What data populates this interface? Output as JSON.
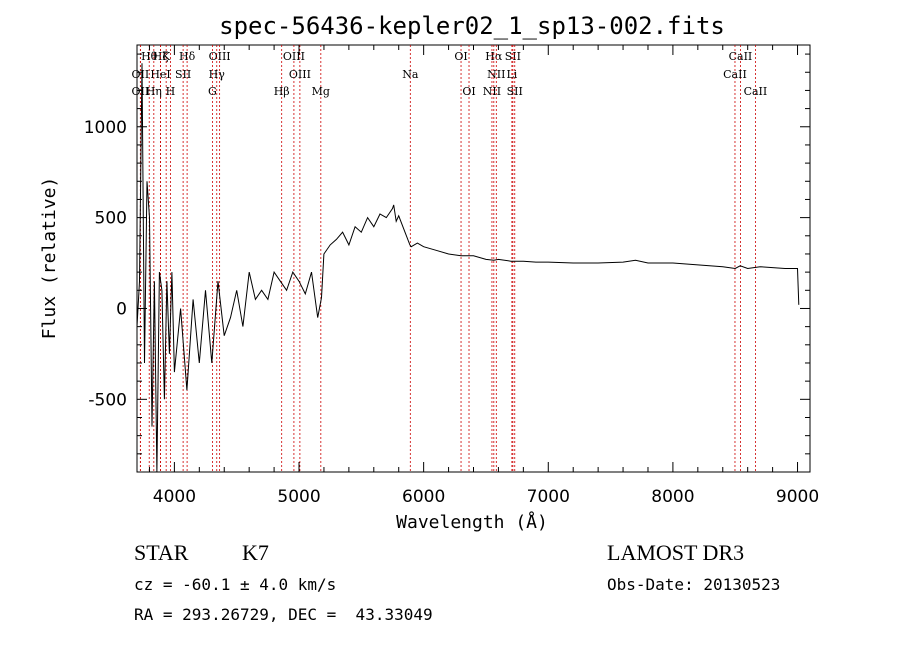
{
  "chart_data": {
    "type": "line",
    "title": "spec-56436-kepler02_1_sp13-002.fits",
    "xlabel": "Wavelength (Å)",
    "ylabel": "Flux (relative)",
    "xlim": [
      3700,
      9100
    ],
    "ylim": [
      -900,
      1450
    ],
    "xticks": [
      4000,
      5000,
      6000,
      7000,
      8000,
      9000
    ],
    "yticks": [
      -500,
      0,
      500,
      1000
    ],
    "series": [
      {
        "name": "spectrum",
        "x": [
          3700,
          3720,
          3740,
          3760,
          3780,
          3800,
          3820,
          3840,
          3860,
          3880,
          3900,
          3920,
          3940,
          3960,
          3980,
          4000,
          4050,
          4100,
          4150,
          4200,
          4250,
          4300,
          4350,
          4400,
          4450,
          4500,
          4550,
          4600,
          4650,
          4700,
          4750,
          4800,
          4850,
          4900,
          4950,
          5000,
          5050,
          5100,
          5150,
          5180,
          5200,
          5250,
          5300,
          5350,
          5400,
          5450,
          5500,
          5550,
          5600,
          5650,
          5700,
          5750,
          5760,
          5780,
          5800,
          5850,
          5890,
          5900,
          5950,
          6000,
          6100,
          6200,
          6300,
          6400,
          6500,
          6563,
          6600,
          6700,
          6800,
          6900,
          7000,
          7200,
          7400,
          7600,
          7700,
          7800,
          8000,
          8200,
          8400,
          8500,
          8540,
          8600,
          8700,
          8800,
          8900,
          9000,
          9010
        ],
        "values": [
          -100,
          150,
          1350,
          -300,
          700,
          500,
          -650,
          150,
          -900,
          200,
          100,
          -500,
          150,
          -250,
          200,
          -350,
          0,
          -450,
          50,
          -300,
          100,
          -300,
          150,
          -150,
          -50,
          100,
          -100,
          200,
          50,
          100,
          50,
          200,
          150,
          100,
          200,
          150,
          80,
          200,
          -50,
          60,
          300,
          350,
          380,
          420,
          350,
          450,
          420,
          500,
          450,
          520,
          500,
          550,
          570,
          480,
          510,
          420,
          350,
          340,
          360,
          340,
          320,
          300,
          290,
          290,
          270,
          265,
          270,
          260,
          260,
          255,
          255,
          250,
          250,
          255,
          265,
          250,
          250,
          240,
          230,
          220,
          235,
          220,
          230,
          225,
          220,
          220,
          20
        ]
      }
    ],
    "lines": [
      {
        "label": "Hζ",
        "x": 3889,
        "row": 0
      },
      {
        "label": "Hθ",
        "x": 3798,
        "row": 0
      },
      {
        "label": "K",
        "x": 3934,
        "row": 0
      },
      {
        "label": "Hδ",
        "x": 4102,
        "row": 0
      },
      {
        "label": "OIII",
        "x": 4363,
        "row": 0
      },
      {
        "label": "OIII",
        "x": 4959,
        "row": 0
      },
      {
        "label": "OI",
        "x": 6300,
        "row": 0
      },
      {
        "label": "Hα",
        "x": 6563,
        "row": 0
      },
      {
        "label": "SII",
        "x": 6716,
        "row": 0
      },
      {
        "label": "CaII",
        "x": 8542,
        "row": 0
      },
      {
        "label": "OII",
        "x": 3727,
        "row": 1
      },
      {
        "label": "HeI",
        "x": 3889,
        "row": 1
      },
      {
        "label": "SII",
        "x": 4070,
        "row": 1
      },
      {
        "label": "Hγ",
        "x": 4340,
        "row": 1
      },
      {
        "label": "OIII",
        "x": 5007,
        "row": 1
      },
      {
        "label": "Na",
        "x": 5893,
        "row": 1
      },
      {
        "label": "NII",
        "x": 6583,
        "row": 1
      },
      {
        "label": "Li",
        "x": 6708,
        "row": 1
      },
      {
        "label": "CaII",
        "x": 8498,
        "row": 1
      },
      {
        "label": "OII",
        "x": 3727,
        "row": 2
      },
      {
        "label": "Hη",
        "x": 3835,
        "row": 2
      },
      {
        "label": "H",
        "x": 3968,
        "row": 2
      },
      {
        "label": "G",
        "x": 4305,
        "row": 2
      },
      {
        "label": "Hβ",
        "x": 4861,
        "row": 2
      },
      {
        "label": "Mg",
        "x": 5175,
        "row": 2
      },
      {
        "label": "OI",
        "x": 6364,
        "row": 2
      },
      {
        "label": "NII",
        "x": 6548,
        "row": 2
      },
      {
        "label": "SII",
        "x": 6731,
        "row": 2
      },
      {
        "label": "CaII",
        "x": 8662,
        "row": 2
      }
    ]
  },
  "info": {
    "object_type": "STAR",
    "subclass": "K7",
    "survey": "LAMOST DR3",
    "cz": "cz = -60.1 ± 4.0 km/s",
    "obs_date": "Obs-Date: 20130523",
    "coords": "RA = 293.26729, DEC =  43.33049"
  },
  "colors": {
    "line": "#000000",
    "marker": "#cc0000",
    "axis": "#000000"
  }
}
